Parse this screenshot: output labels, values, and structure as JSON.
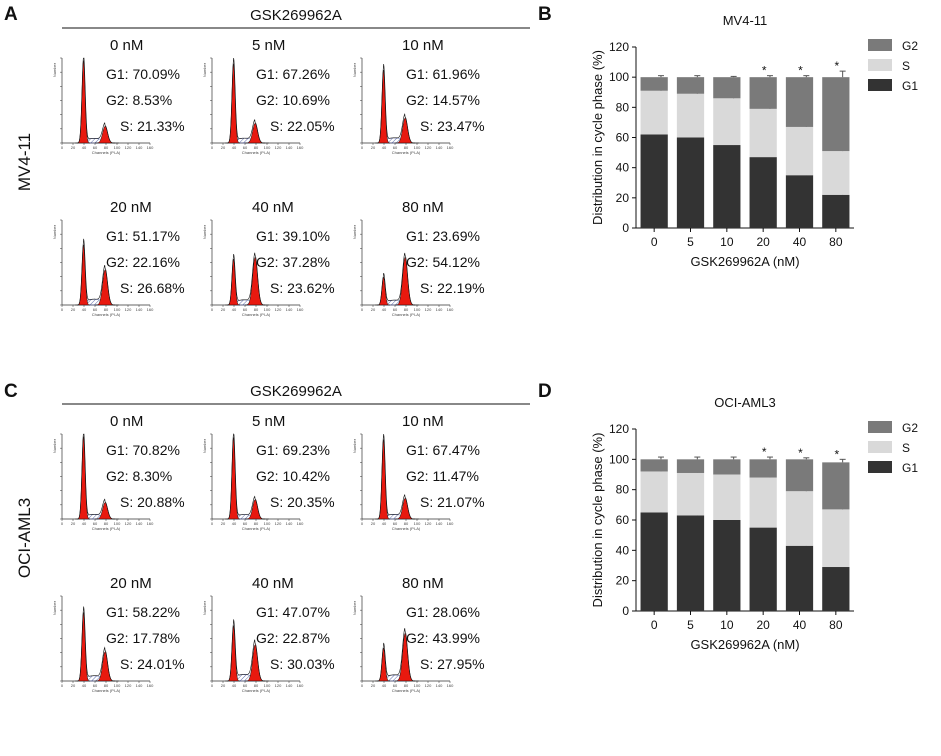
{
  "panel_labels": [
    "A",
    "B",
    "C",
    "D"
  ],
  "flow_panels": [
    {
      "label": "A",
      "header": "GSK269962A",
      "row_label": "MV4-11",
      "x_axis_label": "Channels (PI-A)",
      "y_axis_label": "Number",
      "x_ticks": [
        "0",
        "20",
        "40",
        "60",
        "80",
        "100",
        "120",
        "140",
        "160"
      ],
      "samples": [
        {
          "concentration": "0 nM",
          "g1": "G1: 70.09%",
          "g2": "G2:   8.53%",
          "s": "S: 21.33%",
          "g1_value": 70.09,
          "g2_value": 8.53,
          "s_value": 21.33
        },
        {
          "concentration": "5 nM",
          "g1": "G1: 67.26%",
          "g2": "G2: 10.69%",
          "s": "S: 22.05%",
          "g1_value": 67.26,
          "g2_value": 10.69,
          "s_value": 22.05
        },
        {
          "concentration": "10 nM",
          "g1": "G1: 61.96%",
          "g2": "G2: 14.57%",
          "s": "S: 23.47%",
          "g1_value": 61.96,
          "g2_value": 14.57,
          "s_value": 23.47
        },
        {
          "concentration": "20 nM",
          "g1": "G1: 51.17%",
          "g2": "G2: 22.16%",
          "s": "S: 26.68%",
          "g1_value": 51.17,
          "g2_value": 22.16,
          "s_value": 26.68
        },
        {
          "concentration": "40 nM",
          "g1": "G1: 39.10%",
          "g2": "G2: 37.28%",
          "s": "S: 23.62%",
          "g1_value": 39.1,
          "g2_value": 37.28,
          "s_value": 23.62
        },
        {
          "concentration": "80 nM",
          "g1": "G1: 23.69%",
          "g2": "G2: 54.12%",
          "s": "S: 22.19%",
          "g1_value": 23.69,
          "g2_value": 54.12,
          "s_value": 22.19
        }
      ]
    },
    {
      "label": "C",
      "header": "GSK269962A",
      "row_label": "OCI-AML3",
      "x_axis_label": "Channels (PI-A)",
      "y_axis_label": "Number",
      "x_ticks": [
        "0",
        "20",
        "40",
        "60",
        "80",
        "100",
        "120",
        "140",
        "160"
      ],
      "samples": [
        {
          "concentration": "0 nM",
          "g1": "G1: 70.82%",
          "g2": "G2:   8.30%",
          "s": "S: 20.88%",
          "g1_value": 70.82,
          "g2_value": 8.3,
          "s_value": 20.88
        },
        {
          "concentration": "5 nM",
          "g1": "G1: 69.23%",
          "g2": "G2: 10.42%",
          "s": "S: 20.35%",
          "g1_value": 69.23,
          "g2_value": 10.42,
          "s_value": 20.35
        },
        {
          "concentration": "10 nM",
          "g1": "G1: 67.47%",
          "g2": "G2: 11.47%",
          "s": "S: 21.07%",
          "g1_value": 67.47,
          "g2_value": 11.47,
          "s_value": 21.07
        },
        {
          "concentration": "20 nM",
          "g1": "G1: 58.22%",
          "g2": "G2: 17.78%",
          "s": "S: 24.01%",
          "g1_value": 58.22,
          "g2_value": 17.78,
          "s_value": 24.01
        },
        {
          "concentration": "40 nM",
          "g1": "G1: 47.07%",
          "g2": "G2: 22.87%",
          "s": "S: 30.03%",
          "g1_value": 47.07,
          "g2_value": 22.87,
          "s_value": 30.03
        },
        {
          "concentration": "80 nM",
          "g1": "G1: 28.06%",
          "g2": "G2: 43.99%",
          "s": "S: 27.95%",
          "g1_value": 28.06,
          "g2_value": 43.99,
          "s_value": 27.95
        }
      ]
    }
  ],
  "colors": {
    "g1_peak": "#e8190f",
    "g2_bar": "#7a7a7a",
    "s_bar": "#d9d9d9",
    "g1_bar": "#333333",
    "hatch": "#3a4a9a",
    "axis": "#111111"
  },
  "chart_data": [
    {
      "label": "B",
      "type": "bar",
      "stacked": true,
      "title": "MV4-11",
      "xlabel": "GSK269962A (nM)",
      "ylabel": "Distribution in cycle phase (%)",
      "ylim": [
        0,
        120
      ],
      "yticks": [
        "0",
        "20",
        "40",
        "60",
        "80",
        "100",
        "120"
      ],
      "categories": [
        "0",
        "5",
        "10",
        "20",
        "40",
        "80"
      ],
      "legend_position": "top-right",
      "series": [
        {
          "name": "G1",
          "values": [
            62,
            60,
            55,
            47,
            35,
            22
          ],
          "errors": [
            6,
            6,
            5,
            4,
            3,
            1
          ],
          "significant": [
            false,
            false,
            false,
            true,
            true,
            true
          ]
        },
        {
          "name": "S",
          "values": [
            29,
            29,
            31,
            32,
            32,
            29
          ],
          "errors": [
            5,
            5,
            4,
            3,
            3,
            5
          ],
          "significant": [
            false,
            false,
            false,
            false,
            true,
            false
          ]
        },
        {
          "name": "G2",
          "values": [
            9,
            11,
            14,
            21,
            33,
            49
          ],
          "errors": [
            1,
            1,
            0.5,
            1,
            1,
            4
          ],
          "significant": [
            false,
            false,
            false,
            true,
            true,
            true
          ]
        }
      ]
    },
    {
      "label": "D",
      "type": "bar",
      "stacked": true,
      "title": "OCI-AML3",
      "xlabel": "GSK269962A (nM)",
      "ylabel": "Distribution in cycle phase (%)",
      "ylim": [
        0,
        120
      ],
      "yticks": [
        "0",
        "20",
        "40",
        "60",
        "80",
        "100",
        "120"
      ],
      "categories": [
        "0",
        "5",
        "10",
        "20",
        "40",
        "80"
      ],
      "legend_position": "top-right",
      "series": [
        {
          "name": "G1",
          "values": [
            65,
            63,
            60,
            55,
            43,
            29
          ],
          "errors": [
            6,
            6,
            6,
            5,
            3,
            1
          ],
          "significant": [
            false,
            false,
            false,
            true,
            true,
            true
          ]
        },
        {
          "name": "S",
          "values": [
            27,
            28,
            30,
            33,
            36,
            38
          ],
          "errors": [
            5,
            4,
            4,
            4,
            3,
            3
          ],
          "significant": [
            false,
            false,
            false,
            false,
            false,
            true
          ]
        },
        {
          "name": "G2",
          "values": [
            8,
            9,
            10,
            12,
            21,
            31
          ],
          "errors": [
            1.5,
            1.5,
            1.5,
            1.5,
            1,
            2
          ],
          "significant": [
            false,
            false,
            false,
            true,
            true,
            true
          ]
        }
      ]
    }
  ]
}
